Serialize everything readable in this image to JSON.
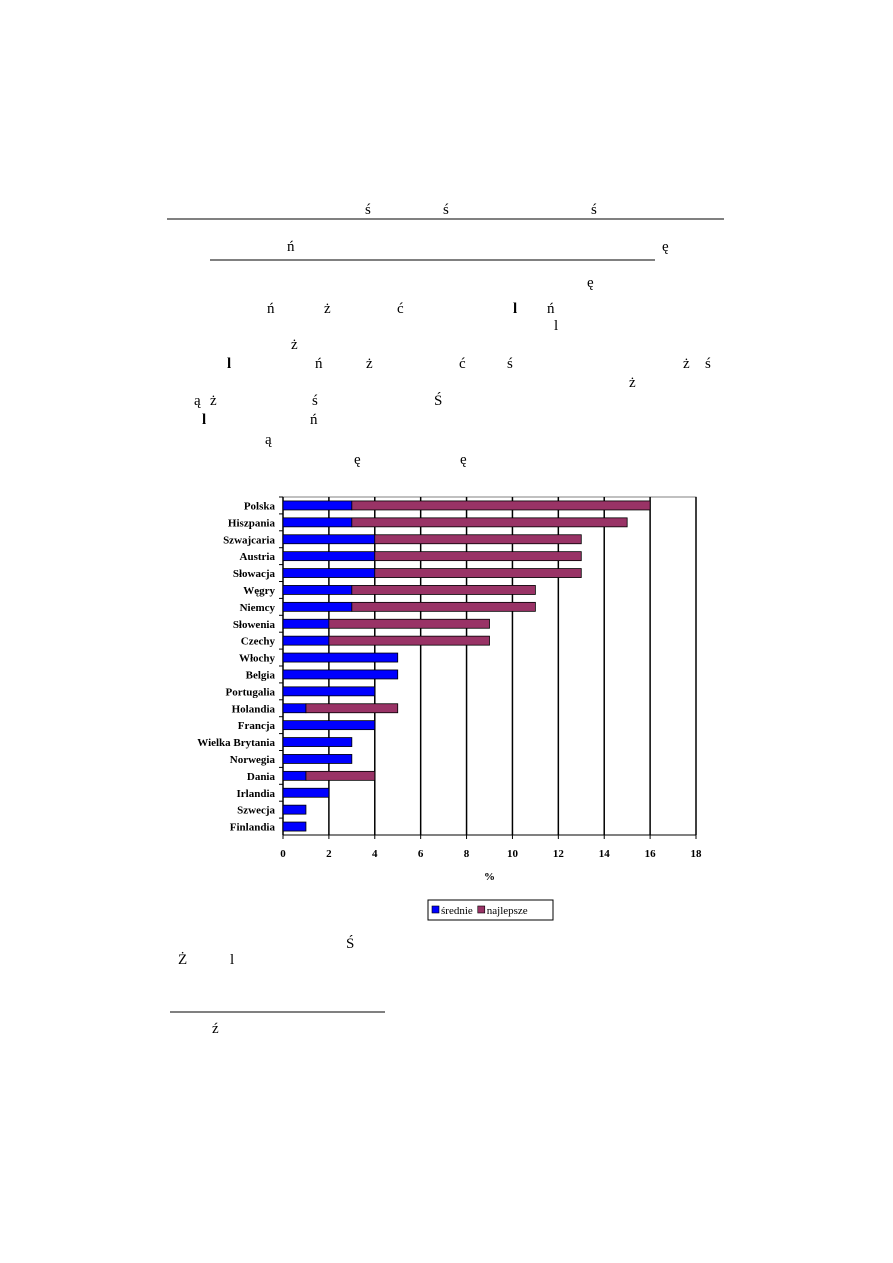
{
  "glyphs": [
    "ś",
    "ś",
    "ś",
    "ń",
    "ę",
    "ę",
    "ń",
    "ż",
    "ć",
    "l",
    "ń",
    "l",
    "ż",
    "l",
    "ń",
    "ż",
    "ć",
    "ś",
    "ż",
    "ś",
    "ż",
    "ą",
    "ż",
    "ś",
    "Ś",
    "l",
    "ń",
    "ą",
    "ę",
    "ę",
    "Ś",
    "Ż",
    "l",
    "ź"
  ],
  "chart_data": {
    "type": "stacked-barh",
    "categories": [
      "Polska",
      "Hiszpania",
      "Szwajcaria",
      "Austria",
      "Słowacja",
      "Węgry",
      "Niemcy",
      "Słowenia",
      "Czechy",
      "Włochy",
      "Belgia",
      "Portugalia",
      "Holandia",
      "Francja",
      "Wielka Brytania",
      "Norwegia",
      "Dania",
      "Irlandia",
      "Szwecja",
      "Finlandia"
    ],
    "series": [
      {
        "name": "średnie",
        "color": "#0000ff",
        "values": [
          3,
          3,
          4,
          4,
          4,
          3,
          3,
          2,
          2,
          5,
          5,
          4,
          1,
          4,
          3,
          3,
          1,
          2,
          1,
          1
        ]
      },
      {
        "name": "najlepsze",
        "color": "#993366",
        "values": [
          13,
          12,
          9,
          9,
          9,
          8,
          8,
          7,
          7,
          0,
          0,
          0,
          4,
          0,
          0,
          0,
          3,
          0,
          0,
          0
        ]
      }
    ],
    "xlabel": "%",
    "xlim": [
      0,
      18
    ],
    "xticks": [
      0,
      2,
      4,
      6,
      8,
      10,
      12,
      14,
      16,
      18
    ],
    "grid": true,
    "legend": "bottom"
  }
}
